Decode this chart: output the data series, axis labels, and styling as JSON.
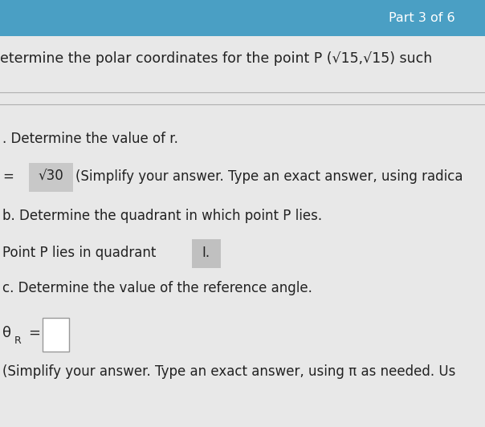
{
  "bg_top_color": "#4a9fc4",
  "bg_main_color": "#e8e8e8",
  "top_bar_text": "Part 3 of 6",
  "top_bar_text_color": "#ffffff",
  "top_bar_height": 0.085,
  "header_text": "etermine the polar coordinates for the point P (√15,√15) such",
  "line_a_label": ". Determine the value of r.",
  "line_r_text": "=  √30  (Simplify your answer. Type an exact answer, using radica",
  "line_r_box_color": "#c8c8c8",
  "line_b_label": "b. Determine the quadrant in which point P lies.",
  "line_q_text": "Point P lies in quadrant  I.",
  "line_q_box_color": "#c0c0c0",
  "line_c_label": "c. Determine the value of the reference angle.",
  "simplify_text": "(Simplify your answer. Type an exact answer, using π as needed. Us",
  "main_text_color": "#222222",
  "divider_color": "#b0b0b0",
  "font_size_top": 11.5,
  "font_size_header": 12.5,
  "font_size_body": 12.0
}
